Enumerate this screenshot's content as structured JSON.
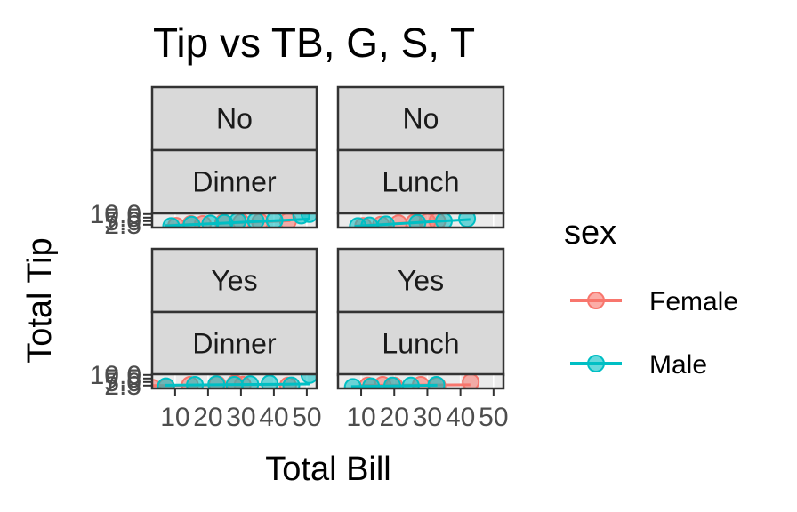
{
  "chart_data": {
    "type": "scatter",
    "title": "Tip vs TB, G, S, T",
    "xlabel": "Total Bill",
    "ylabel": "Total Tip",
    "x_ticks": [
      "10",
      "20",
      "30",
      "40",
      "50"
    ],
    "x_tick_values": [
      10,
      20,
      30,
      40,
      50
    ],
    "y_ticks": [
      "10.0",
      "7.5",
      "5.0",
      "2.5"
    ],
    "y_tick_values": [
      10,
      7.5,
      5,
      2.5
    ],
    "xlim": [
      3,
      53
    ],
    "ylim": [
      0.5,
      10.5
    ],
    "legend": {
      "title": "sex",
      "position": "right",
      "entries": [
        {
          "label": "Female",
          "color": "#F8766D"
        },
        {
          "label": "Male",
          "color": "#00BFC4"
        }
      ]
    },
    "facets": [
      {
        "smoker": "No",
        "time": "Dinner",
        "series": [
          {
            "name": "Female",
            "points": [
              [
                10.3,
                1.7
              ],
              [
                14.8,
                3.0
              ],
              [
                18.4,
                3.0
              ],
              [
                24.6,
                4.0
              ],
              [
                30.1,
                4.2
              ],
              [
                35.8,
                4.5
              ],
              [
                44.3,
                5.0
              ]
            ],
            "fit": [
              [
                7,
                2.0
              ],
              [
                45,
                5.3
              ]
            ]
          },
          {
            "name": "Male",
            "points": [
              [
                8.8,
                1.5
              ],
              [
                15.0,
                2.5
              ],
              [
                20.7,
                3.3
              ],
              [
                25.0,
                3.8
              ],
              [
                29.0,
                5.0
              ],
              [
                34.5,
                5.2
              ],
              [
                40.2,
                5.5
              ],
              [
                48.3,
                9.0
              ],
              [
                50.8,
                10.0
              ]
            ],
            "fit": [
              [
                7,
                1.7
              ],
              [
                51,
                6.5
              ]
            ]
          }
        ]
      },
      {
        "smoker": "No",
        "time": "Lunch",
        "series": [
          {
            "name": "Female",
            "points": [
              [
                10.6,
                1.6
              ],
              [
                16.0,
                2.5
              ],
              [
                21.3,
                3.5
              ],
              [
                26.0,
                4.0
              ],
              [
                30.0,
                4.5
              ],
              [
                33.0,
                5.0
              ]
            ],
            "fit": [
              [
                8,
                1.6
              ],
              [
                34,
                5.0
              ]
            ]
          },
          {
            "name": "Male",
            "points": [
              [
                9.0,
                1.5
              ],
              [
                12.5,
                2.0
              ],
              [
                17.5,
                2.8
              ],
              [
                27.0,
                3.8
              ],
              [
                35.0,
                5.0
              ],
              [
                42.0,
                6.7
              ]
            ],
            "fit": [
              [
                8,
                1.4
              ],
              [
                43,
                6.2
              ]
            ]
          }
        ]
      },
      {
        "smoker": "Yes",
        "time": "Dinner",
        "series": [
          {
            "name": "Female",
            "points": [
              [
                3.1,
                1.0
              ],
              [
                7.3,
                1.5
              ],
              [
                14.5,
                3.0
              ],
              [
                22.8,
                3.5
              ],
              [
                28.2,
                4.0
              ],
              [
                30.5,
                3.1
              ],
              [
                44.3,
                2.5
              ]
            ],
            "fit": [
              [
                3,
                2.5
              ],
              [
                45,
                3.3
              ]
            ]
          },
          {
            "name": "Male",
            "points": [
              [
                7.2,
                2.0
              ],
              [
                16.0,
                3.0
              ],
              [
                22.5,
                3.5
              ],
              [
                28.0,
                3.0
              ],
              [
                32.8,
                3.5
              ],
              [
                38.7,
                4.0
              ],
              [
                45.3,
                2.6
              ],
              [
                50.8,
                10.0
              ]
            ],
            "fit": [
              [
                7,
                2.8
              ],
              [
                51,
                3.6
              ]
            ]
          }
        ]
      },
      {
        "smoker": "Yes",
        "time": "Lunch",
        "series": [
          {
            "name": "Female",
            "points": [
              [
                12.0,
                2.5
              ],
              [
                16.5,
                3.0
              ],
              [
                20.0,
                2.5
              ],
              [
                28.0,
                3.0
              ],
              [
                33.0,
                2.5
              ],
              [
                43.1,
                5.0
              ]
            ],
            "fit": [
              [
                10,
                2.7
              ],
              [
                43,
                3.1
              ]
            ]
          },
          {
            "name": "Male",
            "points": [
              [
                7.5,
                1.5
              ],
              [
                13.0,
                2.0
              ],
              [
                19.4,
                2.5
              ],
              [
                25.0,
                2.5
              ],
              [
                32.7,
                3.0
              ]
            ],
            "fit": [
              [
                7,
                1.8
              ],
              [
                33,
                2.8
              ]
            ]
          }
        ]
      }
    ]
  }
}
